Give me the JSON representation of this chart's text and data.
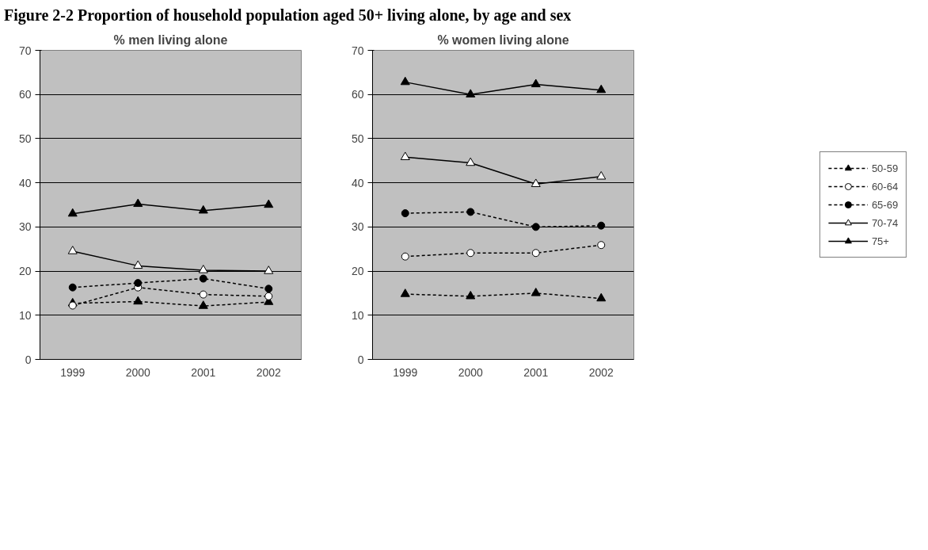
{
  "chart_data": [
    {
      "type": "line",
      "title": "% men living alone",
      "annotations": [
        "Figure 2-2 Proportion of household population aged 50+ living alone, by age and sex"
      ],
      "categories": [
        "1999",
        "2000",
        "2001",
        "2002"
      ],
      "ylim": [
        0,
        70
      ],
      "yticks": [
        0,
        10,
        20,
        30,
        40,
        50,
        60,
        70
      ],
      "grid": "y",
      "legend": false,
      "series": [
        {
          "color": "#000000",
          "marker": "triangle",
          "line_style": "dashed",
          "values": [
            12.7,
            13.1,
            12.1,
            13.0
          ]
        },
        {
          "color": "#000000",
          "marker": "circle_open",
          "line_style": "dashed",
          "values": [
            12.2,
            16.3,
            14.7,
            14.3
          ]
        },
        {
          "color": "#000000",
          "marker": "circle",
          "line_style": "dashed",
          "values": [
            16.3,
            17.3,
            18.3,
            16.0
          ]
        },
        {
          "color": "#000000",
          "marker": "triangle_open",
          "line_style": "solid",
          "values": [
            24.5,
            21.2,
            20.2,
            20.0
          ]
        },
        {
          "color": "#000000",
          "marker": "triangle",
          "line_style": "solid",
          "values": [
            33.0,
            35.2,
            33.7,
            35.0
          ]
        }
      ]
    },
    {
      "type": "line",
      "title": "% women living alone",
      "categories": [
        "1999",
        "2000",
        "2001",
        "2002"
      ],
      "ylim": [
        0,
        70
      ],
      "yticks": [
        0,
        10,
        20,
        30,
        40,
        50,
        60,
        70
      ],
      "grid": "y",
      "legend": "right",
      "series": [
        {
          "name": "50-59",
          "color": "#000000",
          "marker": "triangle",
          "line_style": "dashed",
          "values": [
            14.8,
            14.3,
            15.0,
            13.8
          ]
        },
        {
          "name": "60-64",
          "color": "#000000",
          "marker": "circle_open",
          "line_style": "dashed",
          "values": [
            23.3,
            24.1,
            24.1,
            25.9
          ]
        },
        {
          "name": "65-69",
          "color": "#000000",
          "marker": "circle",
          "line_style": "dashed",
          "values": [
            33.1,
            33.4,
            30.0,
            30.3
          ]
        },
        {
          "name": "70-74",
          "color": "#000000",
          "marker": "triangle_open",
          "line_style": "solid",
          "values": [
            45.8,
            44.5,
            39.7,
            41.4
          ]
        },
        {
          "name": "75+",
          "color": "#000000",
          "marker": "triangle",
          "line_style": "solid",
          "values": [
            62.8,
            60.0,
            62.3,
            61.0
          ]
        }
      ]
    }
  ]
}
